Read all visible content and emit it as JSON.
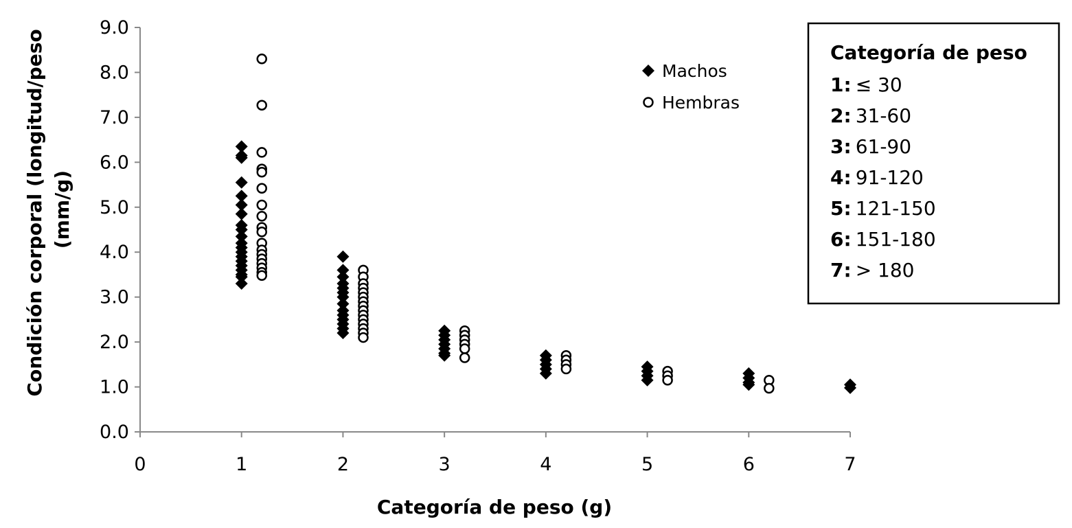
{
  "chart_data": {
    "type": "scatter",
    "xlabel": "Categoría de peso (g)",
    "ylabel": "Condición corporal (longitud/peso (mm/g)",
    "ylabel_lines": [
      "Condición corporal (longitud/peso",
      "(mm/g)"
    ],
    "xlim": [
      0,
      7
    ],
    "ylim": [
      0,
      9
    ],
    "x_ticks": [
      "0",
      "1",
      "2",
      "3",
      "4",
      "5",
      "6",
      "7"
    ],
    "y_ticks": [
      "0.0",
      "1.0",
      "2.0",
      "3.0",
      "4.0",
      "5.0",
      "6.0",
      "7.0",
      "8.0",
      "9.0"
    ],
    "grid": false,
    "legend_position": "top-right",
    "series": [
      {
        "name": "Machos",
        "marker": "filled-diamond",
        "color": "#000000",
        "points": [
          [
            1,
            6.35
          ],
          [
            1,
            6.15
          ],
          [
            1,
            6.1
          ],
          [
            1,
            5.55
          ],
          [
            1,
            5.25
          ],
          [
            1,
            5.05
          ],
          [
            1,
            4.85
          ],
          [
            1,
            4.6
          ],
          [
            1,
            4.5
          ],
          [
            1,
            4.35
          ],
          [
            1,
            4.2
          ],
          [
            1,
            4.1
          ],
          [
            1,
            4.0
          ],
          [
            1,
            3.9
          ],
          [
            1,
            3.8
          ],
          [
            1,
            3.7
          ],
          [
            1,
            3.6
          ],
          [
            1,
            3.5
          ],
          [
            1,
            3.45
          ],
          [
            1,
            3.3
          ],
          [
            2,
            3.9
          ],
          [
            2,
            3.6
          ],
          [
            2,
            3.45
          ],
          [
            2,
            3.3
          ],
          [
            2,
            3.2
          ],
          [
            2,
            3.1
          ],
          [
            2,
            3.0
          ],
          [
            2,
            2.85
          ],
          [
            2,
            2.7
          ],
          [
            2,
            2.6
          ],
          [
            2,
            2.5
          ],
          [
            2,
            2.4
          ],
          [
            2,
            2.3
          ],
          [
            2,
            2.2
          ],
          [
            3,
            2.25
          ],
          [
            3,
            2.15
          ],
          [
            3,
            2.05
          ],
          [
            3,
            1.95
          ],
          [
            3,
            1.85
          ],
          [
            3,
            1.75
          ],
          [
            3,
            1.7
          ],
          [
            4,
            1.7
          ],
          [
            4,
            1.6
          ],
          [
            4,
            1.5
          ],
          [
            4,
            1.4
          ],
          [
            4,
            1.3
          ],
          [
            5,
            1.45
          ],
          [
            5,
            1.35
          ],
          [
            5,
            1.25
          ],
          [
            5,
            1.15
          ],
          [
            6,
            1.3
          ],
          [
            6,
            1.2
          ],
          [
            6,
            1.1
          ],
          [
            6,
            1.05
          ],
          [
            7,
            1.05
          ],
          [
            7,
            0.98
          ]
        ]
      },
      {
        "name": "Hembras",
        "marker": "open-circle",
        "color": "#000000",
        "points": [
          [
            1.2,
            8.3
          ],
          [
            1.2,
            7.27
          ],
          [
            1.2,
            6.22
          ],
          [
            1.2,
            5.85
          ],
          [
            1.2,
            5.78
          ],
          [
            1.2,
            5.42
          ],
          [
            1.2,
            5.05
          ],
          [
            1.2,
            4.8
          ],
          [
            1.2,
            4.55
          ],
          [
            1.2,
            4.45
          ],
          [
            1.2,
            4.2
          ],
          [
            1.2,
            4.05
          ],
          [
            1.2,
            3.95
          ],
          [
            1.2,
            3.85
          ],
          [
            1.2,
            3.75
          ],
          [
            1.2,
            3.65
          ],
          [
            1.2,
            3.55
          ],
          [
            1.2,
            3.48
          ],
          [
            2.2,
            3.6
          ],
          [
            2.2,
            3.45
          ],
          [
            2.2,
            3.3
          ],
          [
            2.2,
            3.2
          ],
          [
            2.2,
            3.1
          ],
          [
            2.2,
            3.0
          ],
          [
            2.2,
            2.9
          ],
          [
            2.2,
            2.8
          ],
          [
            2.2,
            2.7
          ],
          [
            2.2,
            2.6
          ],
          [
            2.2,
            2.5
          ],
          [
            2.2,
            2.4
          ],
          [
            2.2,
            2.3
          ],
          [
            2.2,
            2.2
          ],
          [
            2.2,
            2.1
          ],
          [
            3.2,
            2.25
          ],
          [
            3.2,
            2.15
          ],
          [
            3.2,
            2.05
          ],
          [
            3.2,
            1.95
          ],
          [
            3.2,
            1.85
          ],
          [
            3.2,
            1.65
          ],
          [
            4.2,
            1.7
          ],
          [
            4.2,
            1.6
          ],
          [
            4.2,
            1.5
          ],
          [
            4.2,
            1.4
          ],
          [
            5.2,
            1.35
          ],
          [
            5.2,
            1.25
          ],
          [
            5.2,
            1.15
          ],
          [
            6.2,
            1.15
          ],
          [
            6.2,
            0.97
          ]
        ]
      }
    ],
    "info_box": {
      "title": "Categoría de peso",
      "items": [
        {
          "key": "1:",
          "value": "≤ 30"
        },
        {
          "key": "2:",
          "value": "31-60"
        },
        {
          "key": "3:",
          "value": "61-90"
        },
        {
          "key": "4:",
          "value": "91-120"
        },
        {
          "key": "5:",
          "value": "121-150"
        },
        {
          "key": "6:",
          "value": "151-180"
        },
        {
          "key": "7:",
          "value": "> 180"
        }
      ]
    }
  }
}
